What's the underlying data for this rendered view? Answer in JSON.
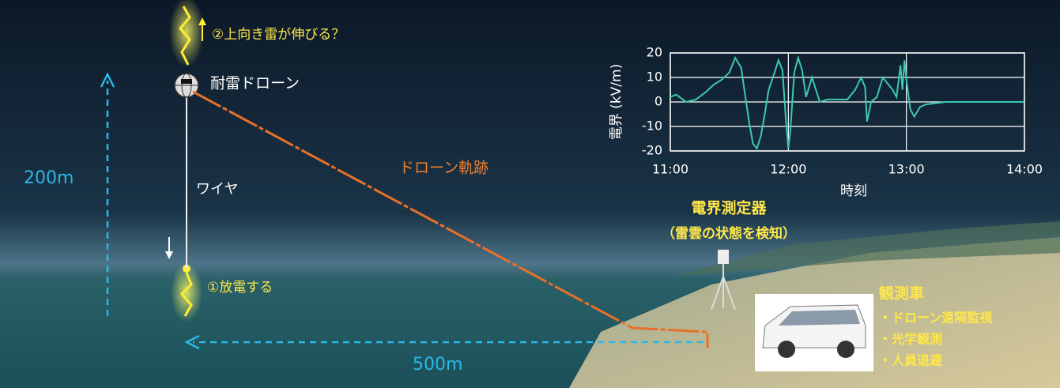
{
  "labels": {
    "upward_lightning": "②上向き雷が伸びる？",
    "drone": "耐雷ドローン",
    "wire": "ワイヤ",
    "trajectory": "ドローン軌跡",
    "height": "200m",
    "distance": "500m",
    "discharge": "①放電する",
    "sensor_title": "電界測定器",
    "sensor_sub": "（雷雲の状態を検知）",
    "vehicle_title": "観測車",
    "vehicle_items": [
      "・ドローン遠隔監視",
      "・光学観測",
      "・人員退避"
    ]
  },
  "chart_data": {
    "type": "line",
    "y_label": "電界 (kV/m)",
    "x_label": "時刻",
    "x": [
      "11:00",
      "11:03",
      "11:08",
      "11:13",
      "11:18",
      "11:22",
      "11:26",
      "11:30",
      "11:33",
      "11:36",
      "11:38",
      "11:40",
      "11:42",
      "11:44",
      "11:46",
      "11:48",
      "11:50",
      "11:53",
      "11:55",
      "11:57",
      "11:59",
      "12:00",
      "12:01",
      "12:03",
      "12:05",
      "12:07",
      "12:09",
      "12:12",
      "12:14",
      "12:16",
      "12:20",
      "12:25",
      "12:30",
      "12:34",
      "12:37",
      "12:39",
      "12:40",
      "12:42",
      "12:45",
      "12:48",
      "12:50",
      "12:53",
      "12:55",
      "12:57",
      "12:58",
      "12:59",
      "13:00",
      "13:02",
      "13:04",
      "13:07",
      "13:10",
      "13:20",
      "13:40",
      "14:00"
    ],
    "series": [
      {
        "color": "#3cc8b2",
        "values": [
          2,
          3,
          0,
          1,
          4,
          7,
          9,
          12,
          18,
          14,
          3,
          -8,
          -17,
          -19,
          -14,
          -5,
          5,
          12,
          17,
          13,
          -10,
          -19,
          -12,
          12,
          18,
          13,
          2,
          10,
          5,
          0,
          1,
          1,
          1,
          5,
          10,
          6,
          -8,
          0,
          2,
          10,
          8,
          5,
          2,
          15,
          5,
          17,
          9,
          -3,
          -6,
          -2,
          -1,
          0,
          0,
          0
        ]
      }
    ],
    "xlim": [
      "11:00",
      "14:00"
    ],
    "xticks": [
      "11:00",
      "12:00",
      "13:00",
      "14:00"
    ],
    "ylim": [
      -20,
      20
    ],
    "yticks": [
      -20,
      -10,
      0,
      10,
      20
    ],
    "grid": true
  }
}
